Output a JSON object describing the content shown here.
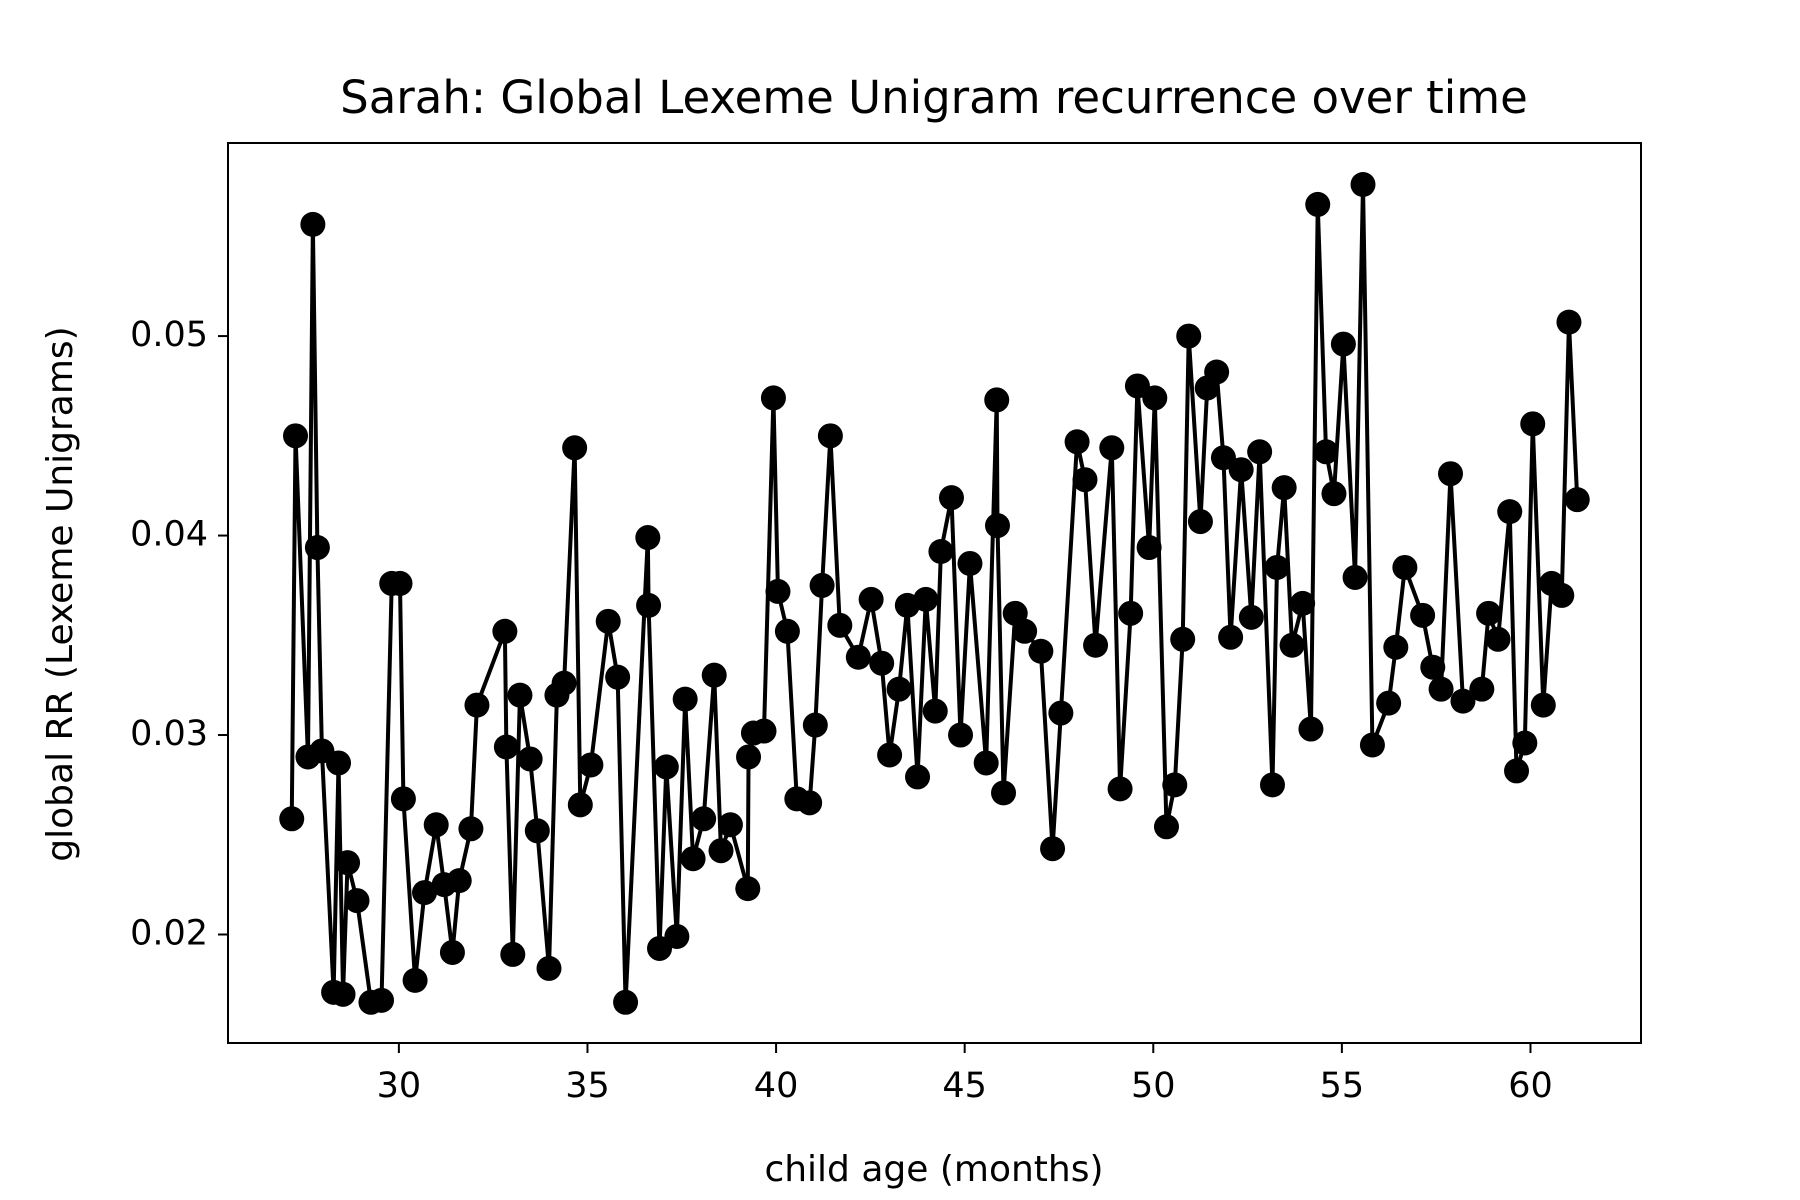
{
  "chart_data": {
    "type": "line",
    "title": "Sarah: Global Lexeme Unigram recurrence over time",
    "xlabel": "child age (months)",
    "ylabel": "global RR (Lexeme Unigrams)",
    "color": "#000000",
    "marker": "o",
    "xlim": [
      25.47,
      62.93
    ],
    "ylim": [
      0.01456,
      0.05968
    ],
    "xticks": [
      30,
      35,
      40,
      45,
      50,
      55,
      60
    ],
    "yticks": [
      0.02,
      0.03,
      0.04,
      0.05
    ],
    "x": [
      27.16,
      27.26,
      27.59,
      27.72,
      27.84,
      27.96,
      28.27,
      28.4,
      28.52,
      28.64,
      28.89,
      29.26,
      29.54,
      29.81,
      30.03,
      30.12,
      30.43,
      30.68,
      30.99,
      31.2,
      31.42,
      31.6,
      31.91,
      32.07,
      32.81,
      32.85,
      33.02,
      33.21,
      33.48,
      33.67,
      33.98,
      34.19,
      34.38,
      34.66,
      34.81,
      35.09,
      35.55,
      35.8,
      36.01,
      36.6,
      36.62,
      36.91,
      37.09,
      37.37,
      37.59,
      37.8,
      38.08,
      38.36,
      38.54,
      38.79,
      39.25,
      39.27,
      39.4,
      39.68,
      39.93,
      40.05,
      40.3,
      40.55,
      40.89,
      41.04,
      41.22,
      41.44,
      41.69,
      42.18,
      42.52,
      42.8,
      43.01,
      43.26,
      43.48,
      43.75,
      43.97,
      44.22,
      44.37,
      44.65,
      44.89,
      45.14,
      45.57,
      45.85,
      45.87,
      46.03,
      46.34,
      46.59,
      47.02,
      47.33,
      47.55,
      47.98,
      48.19,
      48.47,
      48.9,
      49.12,
      49.4,
      49.58,
      49.89,
      50.04,
      50.35,
      50.57,
      50.78,
      50.94,
      51.25,
      51.43,
      51.68,
      51.86,
      52.05,
      52.33,
      52.6,
      52.82,
      53.16,
      53.28,
      53.47,
      53.68,
      53.96,
      54.18,
      54.36,
      54.58,
      54.79,
      55.04,
      55.35,
      55.56,
      55.81,
      56.24,
      56.43,
      56.67,
      57.14,
      57.41,
      57.63,
      57.88,
      58.21,
      58.71,
      58.89,
      59.14,
      59.45,
      59.63,
      59.85,
      60.06,
      60.34,
      60.56,
      60.83,
      61.02,
      61.24
    ],
    "values": [
      0.0258,
      0.045,
      0.0289,
      0.0556,
      0.0394,
      0.0292,
      0.0171,
      0.0286,
      0.017,
      0.0236,
      0.0217,
      0.0166,
      0.0167,
      0.0376,
      0.0376,
      0.0268,
      0.0177,
      0.0221,
      0.0255,
      0.0225,
      0.0191,
      0.0227,
      0.0253,
      0.0315,
      0.0352,
      0.0294,
      0.019,
      0.032,
      0.0288,
      0.0252,
      0.0183,
      0.032,
      0.0326,
      0.0444,
      0.0265,
      0.0285,
      0.0357,
      0.0329,
      0.0166,
      0.0399,
      0.0365,
      0.0193,
      0.0284,
      0.0199,
      0.0318,
      0.0238,
      0.0258,
      0.033,
      0.0242,
      0.0255,
      0.0223,
      0.0289,
      0.0301,
      0.0302,
      0.0469,
      0.0372,
      0.0352,
      0.0268,
      0.0266,
      0.0305,
      0.0375,
      0.045,
      0.0355,
      0.0339,
      0.0368,
      0.0336,
      0.029,
      0.0323,
      0.0365,
      0.0279,
      0.0368,
      0.0312,
      0.0392,
      0.0419,
      0.03,
      0.0386,
      0.0286,
      0.0468,
      0.0405,
      0.0271,
      0.0361,
      0.0352,
      0.0342,
      0.0243,
      0.0311,
      0.0447,
      0.0428,
      0.0345,
      0.0444,
      0.0273,
      0.0361,
      0.0475,
      0.0394,
      0.0469,
      0.0254,
      0.0275,
      0.0348,
      0.05,
      0.0407,
      0.0474,
      0.0482,
      0.0439,
      0.0349,
      0.0433,
      0.0359,
      0.0442,
      0.0275,
      0.0384,
      0.0424,
      0.0345,
      0.0366,
      0.0303,
      0.0566,
      0.0442,
      0.0421,
      0.0496,
      0.0379,
      0.0576,
      0.0295,
      0.0316,
      0.0344,
      0.0384,
      0.036,
      0.0334,
      0.0323,
      0.0431,
      0.0317,
      0.0323,
      0.0361,
      0.0348,
      0.0412,
      0.0282,
      0.0296,
      0.0456,
      0.0315,
      0.0376,
      0.037,
      0.0507,
      0.0418
    ]
  }
}
